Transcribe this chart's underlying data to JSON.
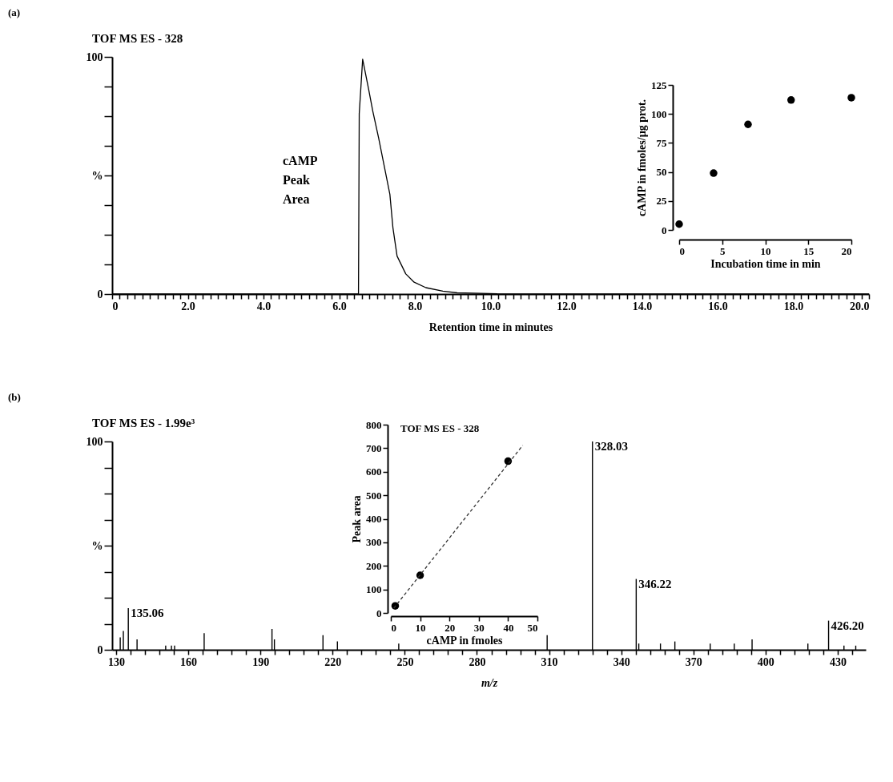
{
  "chart_data": [
    {
      "type": "line",
      "title": "TOF MS ES - 328",
      "xlabel": "Retention time in minutes",
      "color": "#000000",
      "x": [
        0,
        6.4,
        6.51,
        6.53,
        6.62,
        6.77,
        6.89,
        7.04,
        7.19,
        7.34,
        7.42,
        7.53,
        7.76,
        7.98,
        8.29,
        8.74,
        9.12,
        10.18,
        20
      ],
      "values": [
        0,
        0,
        0,
        76,
        99,
        87,
        77,
        66,
        54,
        42,
        28,
        16,
        8.5,
        5,
        2.7,
        1.2,
        0.5,
        0.1,
        0
      ],
      "xlim": [
        0,
        20
      ],
      "xticks": [
        0,
        {
          "value": 0.2,
          "label": null
        },
        {
          "value": 0.4,
          "label": null
        },
        {
          "value": 0.6,
          "label": null
        },
        {
          "value": 0.8,
          "label": null
        },
        {
          "value": 1,
          "label": null
        },
        {
          "value": 1.2,
          "label": null
        },
        {
          "value": 1.4,
          "label": null
        },
        {
          "value": 1.6,
          "label": null
        },
        {
          "value": 1.8,
          "label": null
        },
        {
          "value": 2,
          "label": "2.0"
        },
        {
          "value": 2.2,
          "label": null
        },
        {
          "value": 2.4,
          "label": null
        },
        {
          "value": 2.6,
          "label": null
        },
        {
          "value": 2.8,
          "label": null
        },
        {
          "value": 3,
          "label": null
        },
        {
          "value": 3.2,
          "label": null
        },
        {
          "value": 3.4,
          "label": null
        },
        {
          "value": 3.6,
          "label": null
        },
        {
          "value": 3.8,
          "label": null
        },
        {
          "value": 4,
          "label": "4.0"
        },
        {
          "value": 4.2,
          "label": null
        },
        {
          "value": 4.4,
          "label": null
        },
        {
          "value": 4.6,
          "label": null
        },
        {
          "value": 4.8,
          "label": null
        },
        {
          "value": 5,
          "label": null
        },
        {
          "value": 5.2,
          "label": null
        },
        {
          "value": 5.4,
          "label": null
        },
        {
          "value": 5.6,
          "label": null
        },
        {
          "value": 5.8,
          "label": null
        },
        {
          "value": 6,
          "label": "6.0"
        },
        {
          "value": 6.2,
          "label": null
        },
        {
          "value": 6.4,
          "label": null
        },
        {
          "value": 6.6,
          "label": null
        },
        {
          "value": 6.8,
          "label": null
        },
        {
          "value": 7,
          "label": null
        },
        {
          "value": 7.2,
          "label": null
        },
        {
          "value": 7.4,
          "label": null
        },
        {
          "value": 7.6,
          "label": null
        },
        {
          "value": 7.8,
          "label": null
        },
        {
          "value": 8,
          "label": "8.0"
        },
        {
          "value": 8.2,
          "label": null
        },
        {
          "value": 8.4,
          "label": null
        },
        {
          "value": 8.6,
          "label": null
        },
        {
          "value": 8.8,
          "label": null
        },
        {
          "value": 9,
          "label": null
        },
        {
          "value": 9.2,
          "label": null
        },
        {
          "value": 9.4,
          "label": null
        },
        {
          "value": 9.6,
          "label": null
        },
        {
          "value": 9.8,
          "label": null
        },
        {
          "value": 10,
          "label": "10.0"
        },
        {
          "value": 10.2,
          "label": null
        },
        {
          "value": 10.4,
          "label": null
        },
        {
          "value": 10.6,
          "label": null
        },
        {
          "value": 10.8,
          "label": null
        },
        {
          "value": 11,
          "label": null
        },
        {
          "value": 11.2,
          "label": null
        },
        {
          "value": 11.4,
          "label": null
        },
        {
          "value": 11.6,
          "label": null
        },
        {
          "value": 11.8,
          "label": null
        },
        {
          "value": 12,
          "label": "12.0"
        },
        {
          "value": 12.2,
          "label": null
        },
        {
          "value": 12.4,
          "label": null
        },
        {
          "value": 12.6,
          "label": null
        },
        {
          "value": 12.8,
          "label": null
        },
        {
          "value": 13,
          "label": null
        },
        {
          "value": 13.2,
          "label": null
        },
        {
          "value": 13.4,
          "label": null
        },
        {
          "value": 13.6,
          "label": null
        },
        {
          "value": 13.8,
          "label": null
        },
        {
          "value": 14,
          "label": "14.0"
        },
        {
          "value": 14.2,
          "label": null
        },
        {
          "value": 14.4,
          "label": null
        },
        {
          "value": 14.6,
          "label": null
        },
        {
          "value": 14.8,
          "label": null
        },
        {
          "value": 15,
          "label": null
        },
        {
          "value": 15.2,
          "label": null
        },
        {
          "value": 15.4,
          "label": null
        },
        {
          "value": 15.6,
          "label": null
        },
        {
          "value": 15.8,
          "label": null
        },
        {
          "value": 16,
          "label": "16.0"
        },
        {
          "value": 16.2,
          "label": null
        },
        {
          "value": 16.4,
          "label": null
        },
        {
          "value": 16.6,
          "label": null
        },
        {
          "value": 16.8,
          "label": null
        },
        {
          "value": 17,
          "label": null
        },
        {
          "value": 17.2,
          "label": null
        },
        {
          "value": 17.4,
          "label": null
        },
        {
          "value": 17.6,
          "label": null
        },
        {
          "value": 17.8,
          "label": null
        },
        {
          "value": 18,
          "label": "18.0"
        },
        {
          "value": 18.2,
          "label": null
        },
        {
          "value": 18.4,
          "label": null
        },
        {
          "value": 18.6,
          "label": null
        },
        {
          "value": 18.8,
          "label": null
        },
        {
          "value": 19,
          "label": null
        },
        {
          "value": 19.2,
          "label": null
        },
        {
          "value": 19.4,
          "label": null
        },
        {
          "value": 19.6,
          "label": null
        },
        {
          "value": 19.8,
          "label": null
        },
        {
          "value": 20,
          "label": "20.0"
        }
      ],
      "ylim": [
        0,
        100
      ],
      "yticks": [
        0,
        {
          "value": 12.5,
          "label": null
        },
        {
          "value": 25,
          "label": null
        },
        {
          "value": 37.5,
          "label": null
        },
        {
          "value": 50,
          "label": "%"
        },
        {
          "value": 62.5,
          "label": null
        },
        {
          "value": 75,
          "label": null
        },
        {
          "value": 87.5,
          "label": null
        },
        100
      ],
      "annotations": [
        "(a)",
        "cAMP\nPeak\nArea"
      ]
    },
    {
      "type": "scatter",
      "xlabel": "Incubation time in min",
      "ylabel": "cAMP in fmoles/µg prot.",
      "color": "#000000",
      "marker": "circle",
      "x": [
        0,
        4,
        8,
        13,
        20
      ],
      "values": [
        5,
        49,
        91,
        112,
        114
      ],
      "xlim": [
        0,
        20
      ],
      "xticks": [
        0,
        5,
        10,
        15,
        20
      ],
      "ylim": [
        0,
        125
      ],
      "yticks": [
        0,
        25,
        50,
        75,
        100,
        125
      ]
    },
    {
      "type": "bar",
      "title": "TOF MS ES - 1.99e³",
      "xlabel": "m/z",
      "color": "#000000",
      "x": [
        131.7,
        133,
        135.06,
        138.7,
        150.6,
        153,
        154.3,
        166.6,
        194.8,
        195.8,
        216,
        222,
        247.5,
        309.2,
        328.03,
        346.22,
        347.3,
        356.3,
        362.3,
        377,
        387,
        394.4,
        417.6,
        426.2,
        432.6,
        437.5
      ],
      "values": [
        6,
        9,
        20,
        5,
        2,
        2,
        2,
        8,
        10,
        5,
        7,
        4,
        3,
        7,
        100,
        34,
        3,
        3,
        4,
        3,
        3,
        5,
        3,
        14,
        2,
        2
      ],
      "xlim": [
        130,
        440
      ],
      "xticks": [
        130,
        {
          "value": 136,
          "label": null
        },
        {
          "value": 142,
          "label": null
        },
        {
          "value": 148,
          "label": null
        },
        {
          "value": 154,
          "label": null
        },
        160,
        {
          "value": 166,
          "label": null
        },
        {
          "value": 172,
          "label": null
        },
        {
          "value": 178,
          "label": null
        },
        {
          "value": 184,
          "label": null
        },
        190,
        {
          "value": 196,
          "label": null
        },
        {
          "value": 202,
          "label": null
        },
        {
          "value": 208,
          "label": null
        },
        {
          "value": 214,
          "label": null
        },
        220,
        {
          "value": 226,
          "label": null
        },
        {
          "value": 232,
          "label": null
        },
        {
          "value": 238,
          "label": null
        },
        {
          "value": 244,
          "label": null
        },
        250,
        {
          "value": 256,
          "label": null
        },
        {
          "value": 262,
          "label": null
        },
        {
          "value": 268,
          "label": null
        },
        {
          "value": 274,
          "label": null
        },
        280,
        {
          "value": 286,
          "label": null
        },
        {
          "value": 292,
          "label": null
        },
        {
          "value": 298,
          "label": null
        },
        {
          "value": 304,
          "label": null
        },
        310,
        {
          "value": 316,
          "label": null
        },
        {
          "value": 322,
          "label": null
        },
        {
          "value": 328,
          "label": null
        },
        {
          "value": 334,
          "label": null
        },
        340,
        {
          "value": 346,
          "label": null
        },
        {
          "value": 352,
          "label": null
        },
        {
          "value": 358,
          "label": null
        },
        {
          "value": 364,
          "label": null
        },
        370,
        {
          "value": 376,
          "label": null
        },
        {
          "value": 382,
          "label": null
        },
        {
          "value": 388,
          "label": null
        },
        {
          "value": 394,
          "label": null
        },
        400,
        {
          "value": 406,
          "label": null
        },
        {
          "value": 412,
          "label": null
        },
        {
          "value": 418,
          "label": null
        },
        {
          "value": 424,
          "label": null
        },
        430,
        {
          "value": 436,
          "label": null
        }
      ],
      "ylim": [
        0,
        100
      ],
      "yticks": [
        0,
        {
          "value": 12.5,
          "label": null
        },
        {
          "value": 25,
          "label": null
        },
        {
          "value": 37.5,
          "label": null
        },
        {
          "value": 50,
          "label": "%"
        },
        {
          "value": 62.5,
          "label": null
        },
        {
          "value": 75,
          "label": null
        },
        {
          "value": 87.5,
          "label": null
        },
        100
      ],
      "annotations": [
        "(b)",
        {
          "text": "135.06",
          "x": 135.06,
          "y": 20
        },
        {
          "text": "328.03",
          "x": 328.03,
          "y": 100
        },
        {
          "text": "346.22",
          "x": 346.22,
          "y": 34
        },
        {
          "text": "426.20",
          "x": 426.2,
          "y": 14
        }
      ]
    },
    {
      "type": "scatter",
      "title": "TOF MS  ES - 328",
      "xlabel": "cAMP in fmoles",
      "ylabel": "Peak  area",
      "series": [
        {
          "type": "scatter",
          "marker": "circle",
          "color": "#000000",
          "x": [
            1.5,
            10,
            40
          ],
          "values": [
            30,
            160,
            645
          ]
        },
        {
          "type": "line",
          "color": "#333333",
          "line_style": "dashed",
          "x": [
            1,
            45
          ],
          "values": [
            20,
            712
          ]
        }
      ],
      "xlim": [
        0,
        50
      ],
      "xticks": [
        0,
        10,
        20,
        30,
        40,
        50
      ],
      "ylim": [
        0,
        800
      ],
      "yticks": [
        0,
        100,
        200,
        300,
        400,
        500,
        600,
        700,
        800
      ]
    }
  ]
}
